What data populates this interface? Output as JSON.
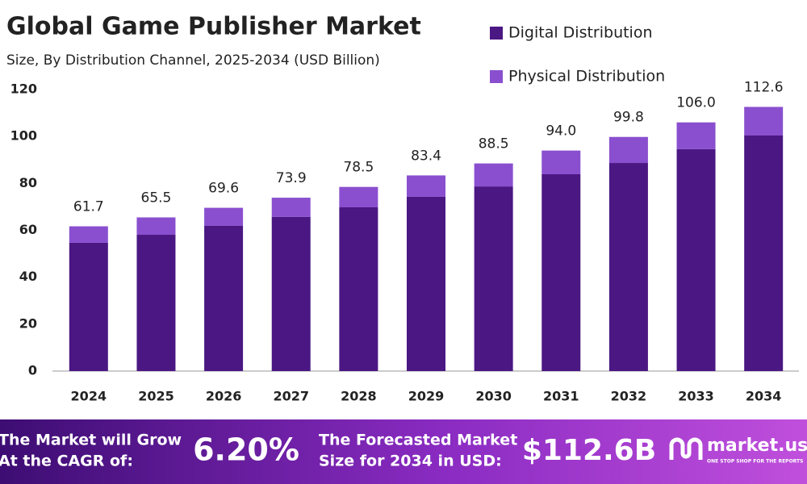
{
  "chart_data": {
    "type": "stacked_bar",
    "title": "Global Game Publisher Market",
    "subtitle": "Size, By Distribution Channel, 2025-2034 (USD Billion)",
    "categories": [
      "2024",
      "2025",
      "2026",
      "2027",
      "2028",
      "2029",
      "2030",
      "2031",
      "2032",
      "2033",
      "2034"
    ],
    "series": [
      {
        "name": "Digital Distribution",
        "color": "#4b1783",
        "values": [
          54.7,
          58.1,
          61.9,
          65.7,
          69.8,
          74.3,
          78.7,
          83.9,
          88.7,
          94.6,
          100.4
        ]
      },
      {
        "name": "Physical Distribution",
        "color": "#8a4fcf",
        "values": [
          7.0,
          7.4,
          7.7,
          8.2,
          8.7,
          9.1,
          9.8,
          10.1,
          11.1,
          11.4,
          12.2
        ]
      }
    ],
    "totals": [
      61.7,
      65.5,
      69.6,
      73.9,
      78.5,
      83.4,
      88.5,
      94.0,
      99.8,
      106.0,
      112.6
    ],
    "value_labels": [
      "61.7",
      "65.5",
      "69.6",
      "73.9",
      "78.5",
      "83.4",
      "88.5",
      "94.0",
      "99.8",
      "106.0",
      "112.6"
    ],
    "ylim": [
      0,
      120
    ],
    "yticks": [
      0,
      20,
      40,
      60,
      80,
      100,
      120
    ],
    "grid": false,
    "legend": "top-right"
  },
  "footer": {
    "cagr_text_1": "The Market will Grow",
    "cagr_text_2": "At the CAGR of:",
    "cagr_value": "6.20%",
    "forecast_text_1": "The Forecasted Market",
    "forecast_text_2": "Size for 2034 in USD:",
    "forecast_value": "$112.6B",
    "brand": "market.us",
    "tagline": "ONE STOP SHOP FOR THE REPORTS"
  }
}
